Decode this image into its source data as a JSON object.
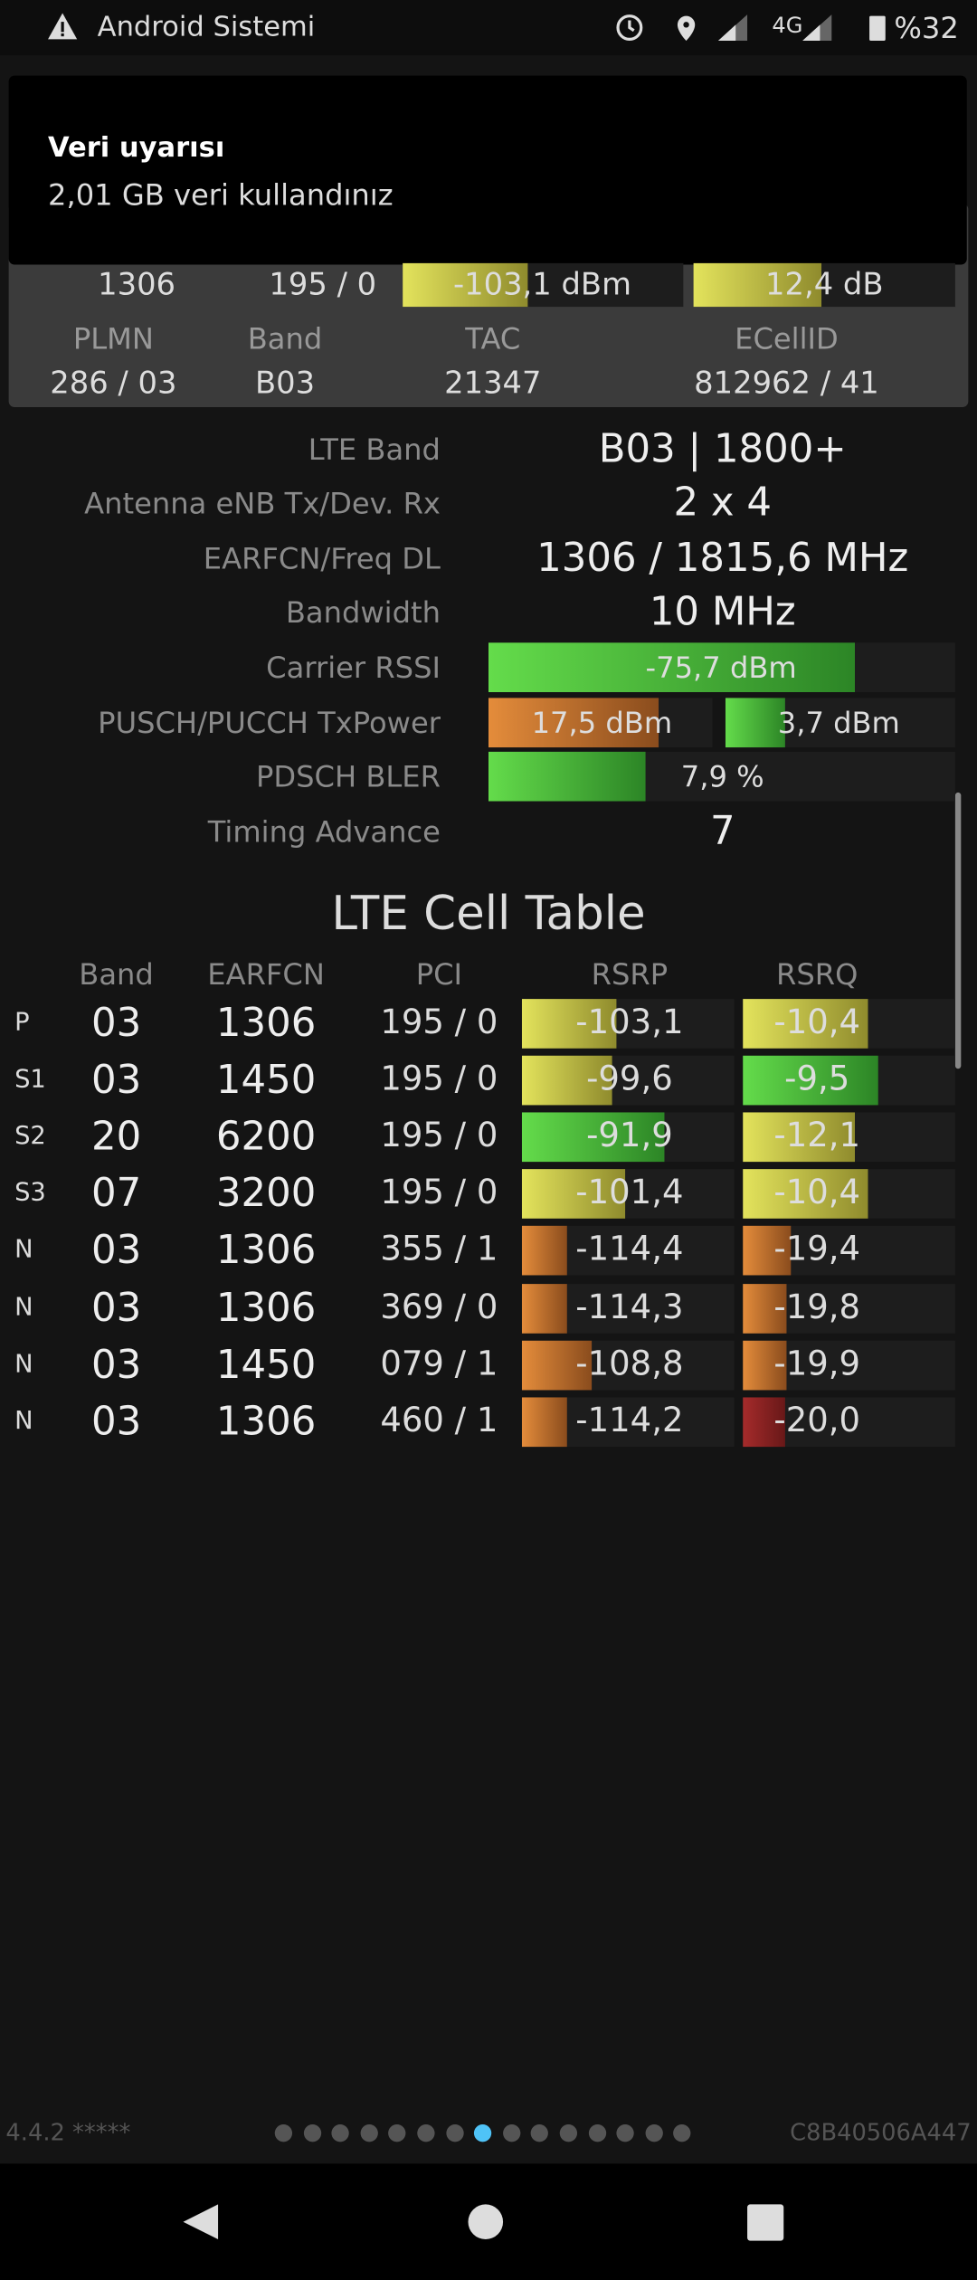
{
  "status_bar": {
    "app": "Android Sistemi",
    "network": "4G",
    "battery": "%32"
  },
  "notification": {
    "title": "Veri uyarısı",
    "text": "2,01 GB veri kullandınız"
  },
  "serving_cell": {
    "row": [
      "1306",
      "195 / 0",
      "-103,1 dBm",
      "12,4 dB"
    ],
    "headers": [
      "PLMN",
      "Band",
      "TAC",
      "ECellID"
    ],
    "values": [
      "286 / 03",
      "B03",
      "21347",
      "812962 / 41"
    ]
  },
  "details": [
    {
      "label": "LTE Band",
      "value": "B03 | 1800+"
    },
    {
      "label": "Antenna eNB Tx/Dev. Rx",
      "value": "2 x 4"
    },
    {
      "label": "EARFCN/Freq DL",
      "value": "1306 / 1815,6 MHz"
    },
    {
      "label": "Bandwidth",
      "value": "10 MHz"
    },
    {
      "label": "Carrier RSSI",
      "value": "-75,7 dBm"
    },
    {
      "label": "PUSCH/PUCCH TxPower",
      "values": [
        "17,5 dBm",
        "3,7 dBm"
      ]
    },
    {
      "label": "PDSCH BLER",
      "value": "7,9 %"
    },
    {
      "label": "Timing Advance",
      "value": "7"
    }
  ],
  "cell_table": {
    "title": "LTE Cell Table",
    "headers": [
      "Band",
      "EARFCN",
      "PCI",
      "RSRP",
      "RSRQ"
    ],
    "rows": [
      [
        "P",
        "03",
        "1306",
        "195 / 0",
        "-103,1",
        "-10,4"
      ],
      [
        "S1",
        "03",
        "1450",
        "195 / 0",
        "-99,6",
        "-9,5"
      ],
      [
        "S2",
        "20",
        "6200",
        "195 / 0",
        "-91,9",
        "-12,1"
      ],
      [
        "S3",
        "07",
        "3200",
        "195 / 0",
        "-101,4",
        "-10,4"
      ],
      [
        "N",
        "03",
        "1306",
        "355 / 1",
        "-114,4",
        "-19,4"
      ],
      [
        "N",
        "03",
        "1306",
        "369 / 0",
        "-114,3",
        "-19,8"
      ],
      [
        "N",
        "03",
        "1450",
        "079 / 1",
        "-108,8",
        "-19,9"
      ],
      [
        "N",
        "03",
        "1306",
        "460 / 1",
        "-114,2",
        "-20,0"
      ]
    ]
  },
  "footer": {
    "version": "4.4.2 *****",
    "device_id": "C8B40506A447"
  }
}
